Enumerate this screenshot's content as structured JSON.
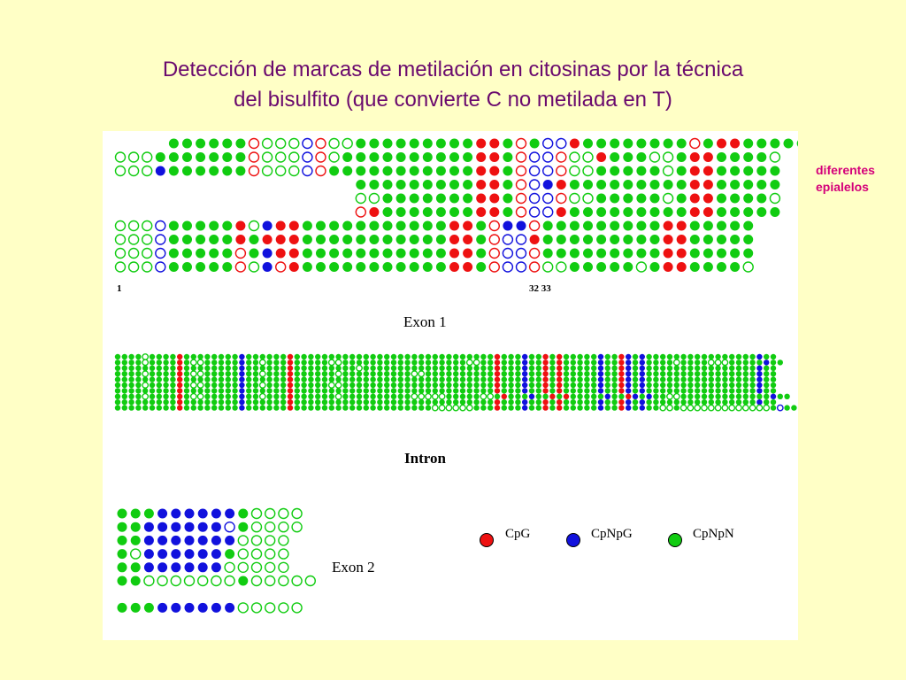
{
  "title": {
    "line1": "Detección de marcas de metilación en citosinas por la técnica",
    "line2": "del bisulfito (que convierte C no metilada en T)"
  },
  "side_note": {
    "line1": "diferentes",
    "line2": "epialelos"
  },
  "colors": {
    "cpg": "#ee1111",
    "cpnpg": "#1111dd",
    "cpnpn": "#11cc11",
    "background": "#ffffc6",
    "title": "#6a0a6e",
    "side_note": "#d4007a"
  },
  "dot_legend": {
    "filled": "methylated C",
    "open": "unmethylated C (converted to T)"
  },
  "sections": {
    "exon1": {
      "label": "Exon 1",
      "position_start": "1",
      "position_mid": "32 33"
    },
    "intron": {
      "label": "Intron"
    },
    "exon2": {
      "label": "Exon 2"
    }
  },
  "legend": [
    {
      "key": "cpg",
      "label": "CpG"
    },
    {
      "key": "cpnpg",
      "label": "CpNpG"
    },
    {
      "key": "cpnpn",
      "label": "CpNpN"
    }
  ],
  "exon1_rows": [
    "....GGGGGGrooobrooGGGGGGGGGRRGrGbbRGGGGGGGGrGRRGGGGG",
    "ooogGGGGGGrooobroGGGGGGGGGGRRGrbbrooRGGGooGRRGGGGo",
    "oooBGGGGGGrooobrGGGGGGGGGGGRRGrbbrooGGGGGoGRRGGGGG",
    "..................GGGGGGGGGRRGrbBRGGGGGGGGGRRGGGGG",
    "..................ooGGGGGGGRRGrbbrooGGGGGoGRRGGGGo",
    "..................rRGGGGGGGRRGrbbRGGGGGGGGGRRGGGGG",
    "ooobGGGGGRoBRRGGGGGGGGGGGRRGrBBrGGGGGGGGGRRGGGGG",
    "ooobGGGGGRGRRRGGGGGGGGGGGRRGrbbRGGGGGGGGGRRGGGGG",
    "ooobGGGGGrGBRRGGGGGGGGGGGRRGrbbrGGGGGGGGGRRGGGGG",
    "ooobGGGGGroBrRGGGGGGGGGGGRRGrbbrooGGGGGoGRRGGGGo"
  ],
  "intron_rows": [
    "GGGGoGGGGRGGGGGGGGBGGGGGGRGGGGGGGGGGGGGGGGGGGGGGGGGGGGGRGGGBGGRGRGGGGGBGGRBGBGGGGGGGGGGGGGGGGBGG",
    "GGGGoGGGGRGooGGGGGBGGoGGGRGGGGGooGGGGGGGGGGGGGGGGGGooGGRGGGBGGRGRGGGGGBGGRBGBGGGGoGGGGoooGGGGGBGG",
    "GGGGGGGGGRGGGGGGGGBGGGGGGRGGGGGGGGGoGGGGGGGGGGGGGGGGGGGRGGGBGGRGRGGGGGBGGRBGBGGGGGGGGGGGGGGGGBGG",
    "GGGGoGGGGRGooGGGGGBGGoGGGRGGGGGGoGGGGGGGGGGooGGGGGGGGGGRGGGBGGRGRGGGGGBGGRBGBGGGGGGGGGGGGGGGGBGG",
    "GGGGGGGGGRGGGGGGGGBGGGGGGRGGGGGGGGGGGGGGGGGGGGGGGGGGGGGRGGGBGGRGRGGGGGBGGRBGBGGGGGGGGGGGGGGGGBGG",
    "GGGGoGGGGRGooGGGGGBGGoGGGRGGGGGooGGGGGGGGGGGGGGGGGGGGGGRGGGBGGRGRGGGGGBGGRBGBGGGGGGGGGGGGGGGGBGG",
    "GGGGGGGGGRGGGGGGGGBGGGGGGRGGGGGGGGGGGGGGGGGGGGGGGGGGGGGRGGGBGGRGRGGGGGBGGRBGBGGGGGGGGGGGGGGGGBGG",
    "GGGGoGGGGRGooGGGGGBGGoGGGRGGGGGGoGGGGGGGGGGoooooGGGGGooGRGGGBGGRGRGGGGGBGGRBGBGGooGGGGGGGGGGGGGBGG",
    "GGGGGGGGGRGGGGGGGGBGGGGGGRGGGGGGGGGGGGGGGGGGGGGGGGGGGGGRGGGBGGRGRGGGGGBGGRBGBGGGGGGGGGGGGGGGGBGG",
    "GGGGGGGGGRGGGGGGGGBGGGGGGRGGGGGGGGGGGGGGGGGGGGooooooGGGRGGGBGGRGRGGGGGBGGRBGBGGoogoooooooooooooGbGG"
  ],
  "exon2_rows": [
    "GGGBBBBBBGoooo",
    "GGBBBBBBbGoooo",
    "GGBBBBBBBoooo",
    "GoBBBBBBGoooo",
    "GGBBBBBBooooo",
    "GGoooooooGooooo",
    "................",
    "GGGBBBBBBooooo"
  ]
}
